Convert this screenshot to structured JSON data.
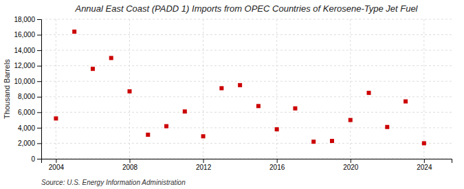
{
  "chart_data": {
    "type": "scatter",
    "title": "Annual East Coast (PADD 1) Imports from OPEC Countries of Kerosene-Type Jet Fuel",
    "ylabel": "Thousand Barrels",
    "annotations": [
      "Source: U.S. Energy Information Administration"
    ],
    "x": [
      2004,
      2005,
      2006,
      2007,
      2008,
      2009,
      2010,
      2011,
      2012,
      2013,
      2014,
      2015,
      2016,
      2017,
      2018,
      2019,
      2020,
      2021,
      2022,
      2023,
      2024
    ],
    "values": [
      5200,
      16400,
      11600,
      13000,
      8700,
      3100,
      4200,
      6100,
      2900,
      9100,
      9500,
      6800,
      3800,
      6500,
      2200,
      2300,
      5000,
      8500,
      4100,
      7400,
      2000
    ],
    "color": "#cc0000",
    "marker": "square",
    "xlim": [
      2003.2,
      2025.5
    ],
    "xticks": [
      2004,
      2008,
      2012,
      2016,
      2020,
      2024
    ],
    "ylim": [
      0,
      18000
    ],
    "yticks": [
      0,
      {
        "value": 2000,
        "label": "2,000"
      },
      {
        "value": 4000,
        "label": "4,000"
      },
      {
        "value": 6000,
        "label": "6,000"
      },
      {
        "value": 8000,
        "label": "8,000"
      },
      {
        "value": 10000,
        "label": "10,000"
      },
      {
        "value": 12000,
        "label": "12,000"
      },
      {
        "value": 14000,
        "label": "14,000"
      },
      {
        "value": 16000,
        "label": "16,000"
      },
      {
        "value": 18000,
        "label": "18,000"
      }
    ],
    "grid": true
  }
}
